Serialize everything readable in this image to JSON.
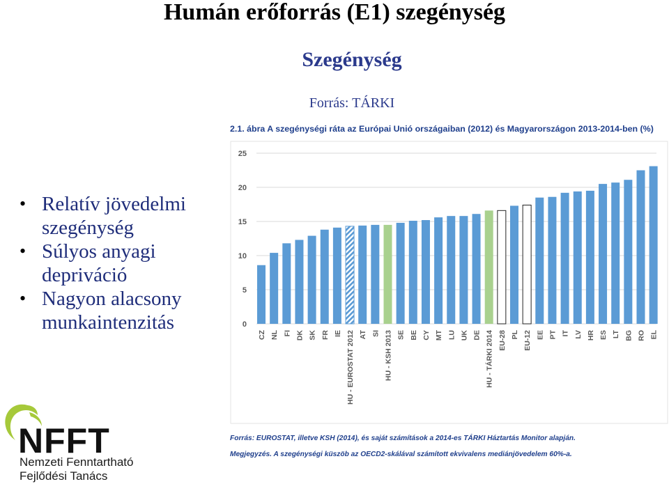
{
  "slide": {
    "title": "Humán erőforrás (E1) szegénység",
    "subtitle": "Szegénység",
    "source": "Forrás: TÁRKI",
    "bullets": [
      {
        "line1": "Relatív jövedelmi",
        "line2": "szegénység"
      },
      {
        "line1": "Súlyos anyagi",
        "line2": "depriváció"
      },
      {
        "line1": "Nagyon alacsony",
        "line2": "munkaintenzitás"
      }
    ]
  },
  "logo": {
    "wordmark": "NFFT",
    "line1": "Nemzeti Fenntartható",
    "line2": "Fejlődési Tanács",
    "colors": {
      "ring": "#a6c93a",
      "text": "#111111"
    }
  },
  "chart_data": {
    "type": "bar",
    "title": "2.1. ábra A szegénységi ráta az Európai Unió országaiban (2012) és Magyarországon 2013-2014-ben (%)",
    "ylim": [
      0,
      25
    ],
    "yticks": [
      0,
      5,
      10,
      15,
      20,
      25
    ],
    "grid": true,
    "categories": [
      "CZ",
      "NL",
      "FI",
      "DK",
      "SK",
      "FR",
      "IE",
      "HU - EUROSTAT 2012",
      "AT",
      "SI",
      "HU - KSH 2013",
      "SE",
      "BE",
      "CY",
      "MT",
      "LU",
      "UK",
      "DE",
      "HU - TÁRKI 2014",
      "EU-28",
      "PL",
      "EU-12",
      "EE",
      "PT",
      "IT",
      "LV",
      "HR",
      "ES",
      "LT",
      "BG",
      "RO",
      "EL"
    ],
    "values": [
      8.6,
      10.4,
      11.8,
      12.3,
      12.9,
      13.8,
      14.1,
      14.3,
      14.4,
      14.5,
      14.5,
      14.8,
      15.1,
      15.2,
      15.6,
      15.8,
      15.8,
      16.1,
      16.6,
      16.6,
      17.3,
      17.4,
      18.5,
      18.6,
      19.2,
      19.4,
      19.5,
      20.5,
      20.7,
      21.1,
      22.5,
      23.1
    ],
    "styles": [
      "solid",
      "solid",
      "solid",
      "solid",
      "solid",
      "solid",
      "solid",
      "hatched",
      "solid",
      "solid",
      "green",
      "solid",
      "solid",
      "solid",
      "solid",
      "solid",
      "solid",
      "solid",
      "green",
      "outline",
      "solid",
      "outline",
      "solid",
      "solid",
      "solid",
      "solid",
      "solid",
      "solid",
      "solid",
      "solid",
      "solid",
      "solid"
    ],
    "colors": {
      "bar": "#5b9bd5",
      "green": "#a9d18e",
      "grid": "#d9d9d9",
      "label": "#595959",
      "heading": "#1f3f8c"
    },
    "footnote1": "Forrás: EUROSTAT, illetve KSH (2014), és saját számítások a 2014-es TÁRKI Háztartás Monitor alapján.",
    "footnote2": "Megjegyzés. A szegénységi küszöb az OECD2-skálával számított ekvivalens mediánjövedelem 60%-a."
  }
}
